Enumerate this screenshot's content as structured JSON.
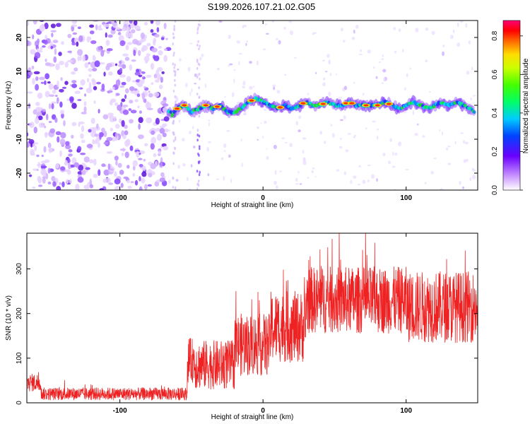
{
  "title": "S199.2026.107.21.02.G05",
  "colors": {
    "snr_line": "#ee2222",
    "frame": "#000000",
    "background": "#ffffff"
  },
  "chart_data": [
    {
      "type": "heatmap",
      "name": "dynamic-spectrum",
      "xlabel": "Height of straight line (km)",
      "ylabel": "Frequency (Hz)",
      "xlim": [
        -165,
        150
      ],
      "ylim": [
        -25,
        25
      ],
      "xticks": [
        -100,
        0,
        100
      ],
      "yticks": [
        -20,
        -10,
        0,
        10,
        20
      ],
      "noise_region_x": [
        -165,
        -66
      ],
      "signal_start_x": -66,
      "ridge": [
        {
          "x": -64,
          "f": -3
        },
        {
          "x": -60,
          "f": -1
        },
        {
          "x": -55,
          "f": 0
        },
        {
          "x": -50,
          "f": -2
        },
        {
          "x": -45,
          "f": -1
        },
        {
          "x": -40,
          "f": 0
        },
        {
          "x": -35,
          "f": -1
        },
        {
          "x": -30,
          "f": 0
        },
        {
          "x": -25,
          "f": -2
        },
        {
          "x": -20,
          "f": -2
        },
        {
          "x": -15,
          "f": -1
        },
        {
          "x": -10,
          "f": 1
        },
        {
          "x": -5,
          "f": 2
        },
        {
          "x": 0,
          "f": 1
        },
        {
          "x": 5,
          "f": 0
        },
        {
          "x": 10,
          "f": -1
        },
        {
          "x": 15,
          "f": 0
        },
        {
          "x": 20,
          "f": -1
        },
        {
          "x": 25,
          "f": 0
        },
        {
          "x": 30,
          "f": 1
        },
        {
          "x": 35,
          "f": 0
        },
        {
          "x": 40,
          "f": 0
        },
        {
          "x": 45,
          "f": 1
        },
        {
          "x": 50,
          "f": 0
        },
        {
          "x": 55,
          "f": 0
        },
        {
          "x": 60,
          "f": 1
        },
        {
          "x": 65,
          "f": 0
        },
        {
          "x": 70,
          "f": 0
        },
        {
          "x": 75,
          "f": 0
        },
        {
          "x": 80,
          "f": 0
        },
        {
          "x": 85,
          "f": 1
        },
        {
          "x": 90,
          "f": 0
        },
        {
          "x": 95,
          "f": -1
        },
        {
          "x": 100,
          "f": 0
        },
        {
          "x": 105,
          "f": 1
        },
        {
          "x": 110,
          "f": 0
        },
        {
          "x": 115,
          "f": -1
        },
        {
          "x": 120,
          "f": 0
        },
        {
          "x": 125,
          "f": 1
        },
        {
          "x": 130,
          "f": 0
        },
        {
          "x": 135,
          "f": 1
        },
        {
          "x": 140,
          "f": 0
        },
        {
          "x": 145,
          "f": -1
        },
        {
          "x": 148,
          "f": -2
        }
      ],
      "colorbar": {
        "label": "Normalized spectral amplitude",
        "range": [
          0,
          0.88
        ],
        "ticks": [
          "0.0",
          "0.2",
          "0.4",
          "0.6",
          "0.8"
        ]
      }
    },
    {
      "type": "line",
      "name": "snr",
      "xlabel": "Height of straight line (km)",
      "ylabel": "SNR (10 * v/v)",
      "xlim": [
        -165,
        150
      ],
      "ylim": [
        0,
        380
      ],
      "xticks": [
        -100,
        0,
        100
      ],
      "yticks": [
        0,
        100,
        200,
        300
      ],
      "segments": [
        {
          "x_start": -165,
          "x_end": -155,
          "mean": 45,
          "amp": 20
        },
        {
          "x_start": -155,
          "x_end": -53,
          "mean": 20,
          "amp": 14
        },
        {
          "x_start": -53,
          "x_end": -48,
          "mean": 95,
          "amp": 50
        },
        {
          "x_start": -48,
          "x_end": -20,
          "mean": 85,
          "amp": 55
        },
        {
          "x_start": -20,
          "x_end": 5,
          "mean": 130,
          "amp": 70
        },
        {
          "x_start": 5,
          "x_end": 30,
          "mean": 170,
          "amp": 80
        },
        {
          "x_start": 30,
          "x_end": 100,
          "mean": 230,
          "amp": 75
        },
        {
          "x_start": 100,
          "x_end": 150,
          "mean": 215,
          "amp": 80
        }
      ]
    }
  ]
}
